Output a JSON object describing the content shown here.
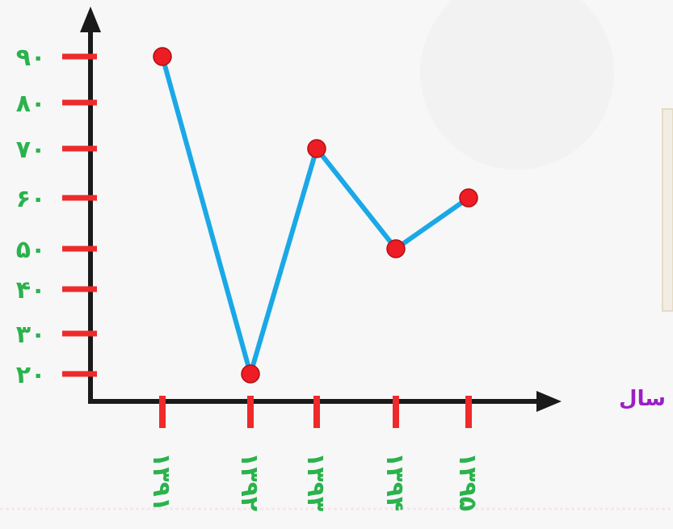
{
  "chart_data": {
    "type": "line",
    "title": "",
    "xlabel": "سال",
    "ylabel": "",
    "categories": [
      "۱۳۹۱",
      "۱۳۹۲",
      "۱۳۹۳",
      "۱۳۹۴",
      "۱۳۹۵"
    ],
    "y_ticks": [
      20,
      30,
      40,
      50,
      60,
      70,
      80,
      90
    ],
    "y_tick_labels": [
      "۲۰",
      "۳۰",
      "۴۰",
      "۵۰",
      "۶۰",
      "۷۰",
      "۸۰",
      "۹۰"
    ],
    "series": [
      {
        "values": [
          90,
          20,
          70,
          50,
          60
        ]
      }
    ],
    "grid": false,
    "colors": {
      "line": "#1aa8e6",
      "marker": "#ee1c24",
      "tick": "#ee2a2a",
      "axis": "#1a1a1a",
      "tick_label": "#2bb24c",
      "xlabel": "#9b1fc7"
    }
  }
}
